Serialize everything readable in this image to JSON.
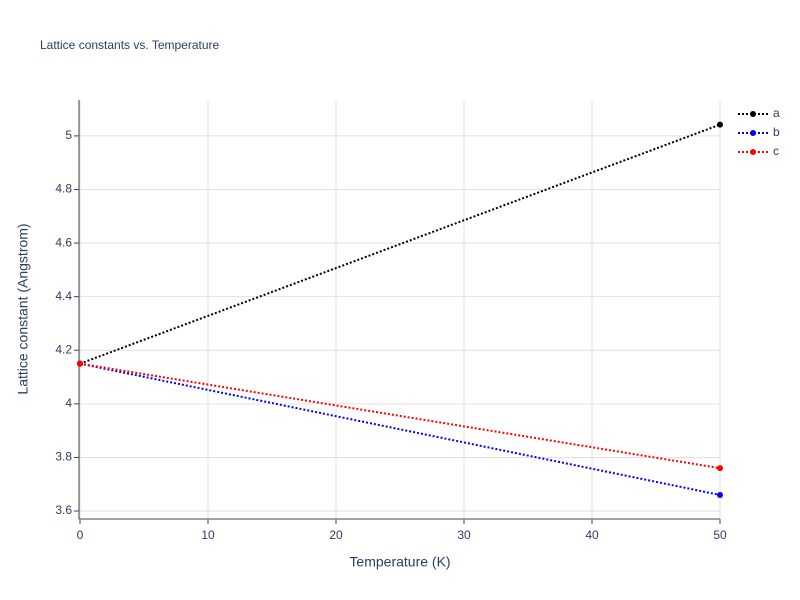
{
  "chart_data": {
    "type": "line",
    "title": "Lattice constants vs. Temperature",
    "x_label": "Temperature (K)",
    "y_label": "Lattice constant (Angstrom)",
    "x": [
      0,
      50
    ],
    "series": [
      {
        "name": "a",
        "color": "#000000",
        "values": [
          4.15,
          5.042
        ]
      },
      {
        "name": "b",
        "color": "#0000ff",
        "values": [
          4.15,
          3.66
        ]
      },
      {
        "name": "c",
        "color": "#ff0000",
        "values": [
          4.15,
          3.76
        ]
      }
    ],
    "xlim": [
      0,
      50
    ],
    "xticks": [
      0,
      10,
      20,
      30,
      40,
      50
    ],
    "ylim": [
      3.574,
      5.134
    ],
    "yticks": [
      3.6,
      3.8,
      4,
      4.2,
      4.4,
      4.6,
      4.8,
      5
    ],
    "grid": true,
    "legend": "right"
  }
}
